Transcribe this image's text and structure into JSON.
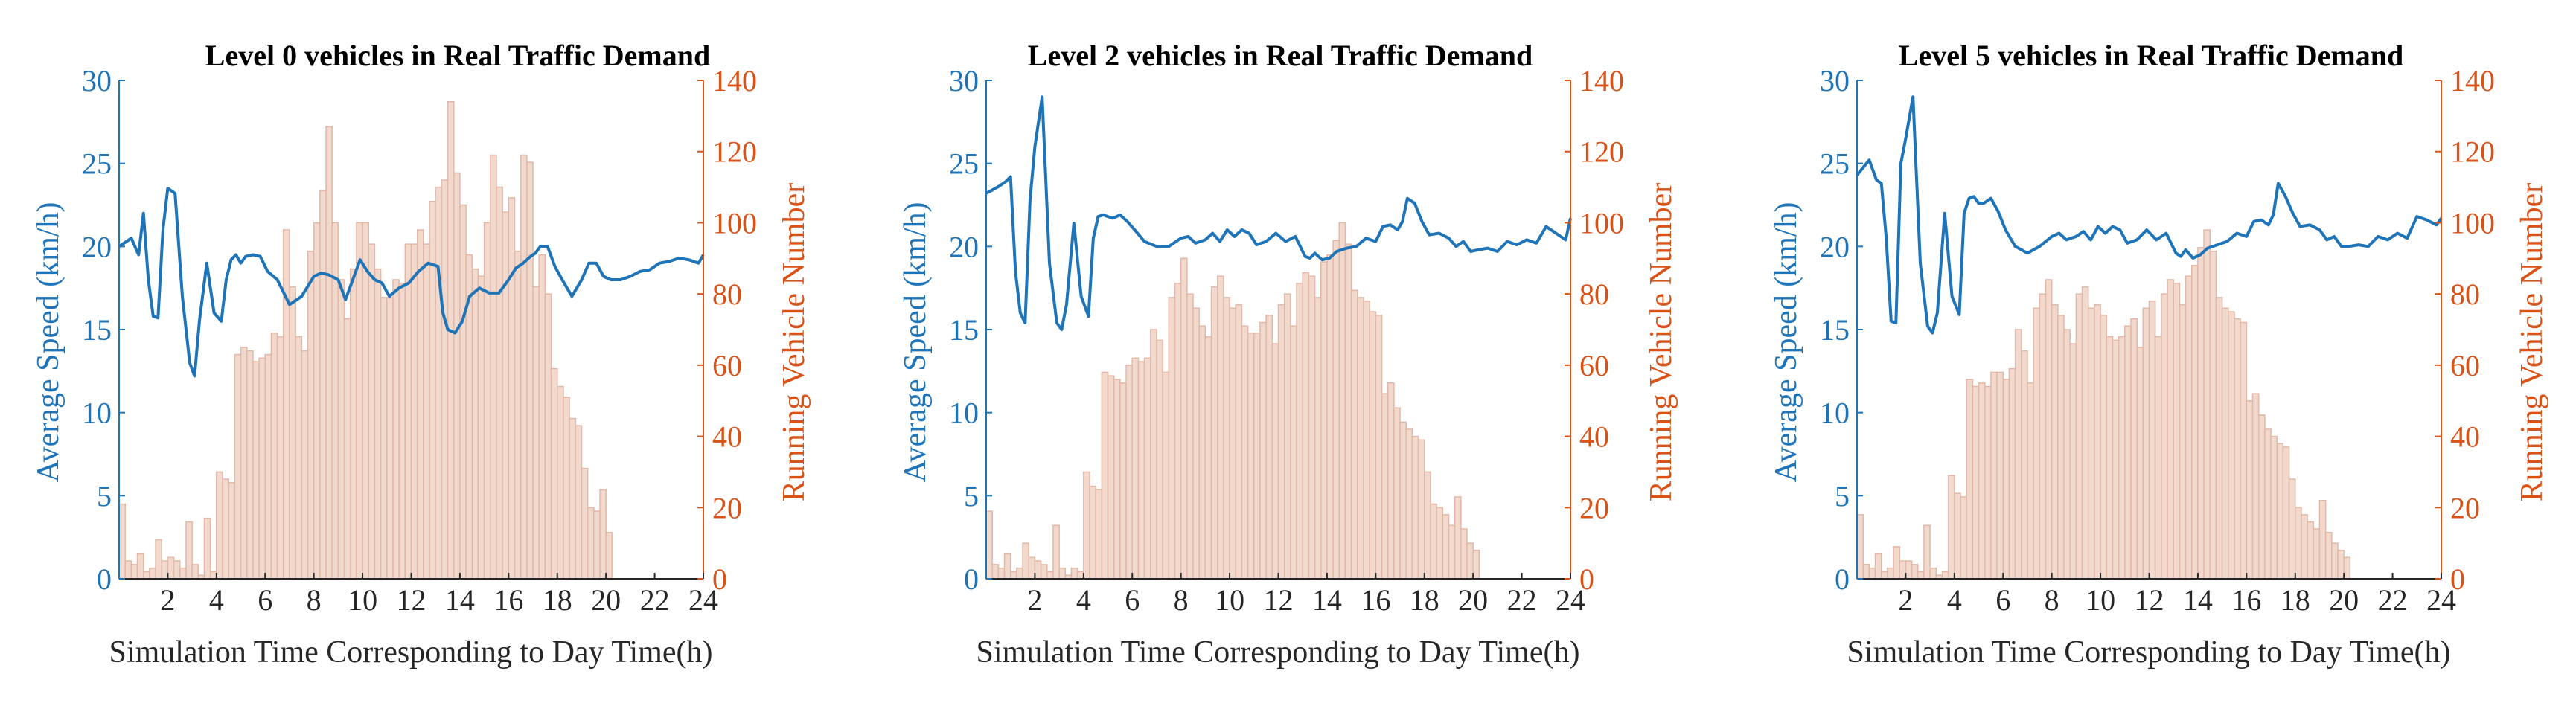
{
  "colors": {
    "speed": "#1f74b8",
    "vehicles": "#d95319",
    "bar_fill": "#f2d9cd",
    "bar_stroke": "#e3b7a5",
    "axis": "#262626"
  },
  "chart_data": [
    {
      "type": "bar+line",
      "title": "Level 0 vehicles in Real Traffic Demand",
      "xlabel": "Simulation Time Corresponding to Day Time(h)",
      "ylabel_left": "Average Speed (km/h)",
      "ylabel_right": "Running Vehicle Number",
      "xlim": [
        0,
        24
      ],
      "ylim_left": [
        0,
        30
      ],
      "ylim_right": [
        0,
        140
      ],
      "x_ticks": [
        2,
        4,
        6,
        8,
        10,
        12,
        14,
        16,
        18,
        20,
        22,
        24
      ],
      "y_left_ticks": [
        0,
        5,
        10,
        15,
        20,
        25,
        30
      ],
      "y_right_ticks": [
        0,
        20,
        40,
        60,
        80,
        100,
        120,
        140
      ],
      "bars": {
        "name": "Running Vehicle Number",
        "bin_width_h": 0.25,
        "values": [
          21,
          5,
          4,
          7,
          2,
          3,
          11,
          5,
          6,
          5,
          3,
          16,
          4,
          1,
          17,
          2,
          30,
          28,
          27,
          63,
          65,
          64,
          61,
          62,
          63,
          69,
          68,
          98,
          82,
          68,
          64,
          92,
          100,
          109,
          127,
          100,
          84,
          73,
          87,
          100,
          100,
          94,
          87,
          79,
          79,
          84,
          83,
          94,
          94,
          98,
          94,
          106,
          110,
          112,
          134,
          114,
          105,
          91,
          87,
          85,
          100,
          119,
          110,
          103,
          107,
          92,
          119,
          117,
          82,
          91,
          80,
          59,
          54,
          51,
          45,
          43,
          31,
          20,
          19,
          25,
          13
        ]
      },
      "line": {
        "name": "Average Speed",
        "x": [
          0,
          0.5,
          0.8,
          1.0,
          1.2,
          1.4,
          1.6,
          1.8,
          2.0,
          2.3,
          2.6,
          2.9,
          3.1,
          3.3,
          3.6,
          3.9,
          4.2,
          4.4,
          4.6,
          4.8,
          5.0,
          5.2,
          5.5,
          5.8,
          6.1,
          6.5,
          7.0,
          7.5,
          8.0,
          8.3,
          8.6,
          9.0,
          9.3,
          9.6,
          9.9,
          10.2,
          10.5,
          10.8,
          11.1,
          11.5,
          11.9,
          12.3,
          12.7,
          13.1,
          13.3,
          13.5,
          13.8,
          14.1,
          14.4,
          14.8,
          15.2,
          15.6,
          16.0,
          16.3,
          16.6,
          16.9,
          17.1,
          17.3,
          17.6,
          17.9,
          18.2,
          18.6,
          19.0,
          19.3,
          19.6,
          19.9,
          20.2,
          20.6,
          21.0,
          21.4,
          21.8,
          22.2,
          22.6,
          23.0,
          23.4,
          23.8,
          24.0
        ],
        "y": [
          20.0,
          20.5,
          19.5,
          22.0,
          18.0,
          15.8,
          15.7,
          21.0,
          23.5,
          23.2,
          17.0,
          13.0,
          12.2,
          15.5,
          19.0,
          16.0,
          15.5,
          18.0,
          19.2,
          19.5,
          19.0,
          19.4,
          19.5,
          19.4,
          18.5,
          18.0,
          16.5,
          17.0,
          18.2,
          18.4,
          18.3,
          18.0,
          16.8,
          18.0,
          19.2,
          18.5,
          18.0,
          17.8,
          17.0,
          17.5,
          17.8,
          18.5,
          19.0,
          18.8,
          16.0,
          15.0,
          14.8,
          15.5,
          17.0,
          17.5,
          17.2,
          17.2,
          18.0,
          18.7,
          19.0,
          19.4,
          19.6,
          20.0,
          20.0,
          18.8,
          18.0,
          17.0,
          18.0,
          19.0,
          19.0,
          18.2,
          18.0,
          18.0,
          18.2,
          18.5,
          18.6,
          19.0,
          19.1,
          19.3,
          19.2,
          19.0,
          19.5
        ]
      }
    },
    {
      "type": "bar+line",
      "title": "Level 2 vehicles in Real Traffic Demand",
      "xlabel": "Simulation Time Corresponding to Day Time(h)",
      "ylabel_left": "Average Speed (km/h)",
      "ylabel_right": "Running Vehicle Number",
      "xlim": [
        0,
        24
      ],
      "ylim_left": [
        0,
        30
      ],
      "ylim_right": [
        0,
        140
      ],
      "x_ticks": [
        2,
        4,
        6,
        8,
        10,
        12,
        14,
        16,
        18,
        20,
        22,
        24
      ],
      "y_left_ticks": [
        0,
        5,
        10,
        15,
        20,
        25,
        30
      ],
      "y_right_ticks": [
        0,
        20,
        40,
        60,
        80,
        100,
        120,
        140
      ],
      "bars": {
        "name": "Running Vehicle Number",
        "bin_width_h": 0.25,
        "values": [
          19,
          4,
          3,
          7,
          2,
          3,
          10,
          6,
          5,
          4,
          2,
          15,
          3,
          1,
          3,
          2,
          30,
          26,
          25,
          58,
          57,
          56,
          55,
          60,
          62,
          61,
          62,
          70,
          67,
          58,
          79,
          83,
          90,
          80,
          76,
          71,
          68,
          82,
          85,
          79,
          76,
          77,
          71,
          69,
          69,
          72,
          74,
          66,
          77,
          80,
          71,
          83,
          86,
          85,
          79,
          89,
          91,
          95,
          100,
          94,
          81,
          79,
          78,
          75,
          74,
          52,
          55,
          48,
          44,
          42,
          40,
          39,
          30,
          21,
          20,
          18,
          15,
          23,
          14,
          10,
          8
        ]
      },
      "line": {
        "name": "Average Speed",
        "x": [
          0,
          0.5,
          0.8,
          1.0,
          1.2,
          1.4,
          1.6,
          1.8,
          2.0,
          2.3,
          2.6,
          2.9,
          3.1,
          3.3,
          3.6,
          3.9,
          4.2,
          4.4,
          4.6,
          4.8,
          5.0,
          5.2,
          5.5,
          5.8,
          6.1,
          6.5,
          7.0,
          7.5,
          8.0,
          8.3,
          8.6,
          9.0,
          9.3,
          9.6,
          9.9,
          10.2,
          10.5,
          10.8,
          11.1,
          11.5,
          11.9,
          12.3,
          12.7,
          13.1,
          13.3,
          13.5,
          13.8,
          14.1,
          14.4,
          14.8,
          15.2,
          15.6,
          16.0,
          16.3,
          16.6,
          16.9,
          17.1,
          17.3,
          17.6,
          17.9,
          18.2,
          18.6,
          19.0,
          19.3,
          19.6,
          19.9,
          20.2,
          20.6,
          21.0,
          21.4,
          21.8,
          22.2,
          22.6,
          23.0,
          23.4,
          23.8,
          24.0
        ],
        "y": [
          23.2,
          23.6,
          23.9,
          24.2,
          18.5,
          16.0,
          15.4,
          22.8,
          26.0,
          29.0,
          19.0,
          15.4,
          15.0,
          16.5,
          21.4,
          17.0,
          15.8,
          20.5,
          21.8,
          21.9,
          21.8,
          21.7,
          21.9,
          21.5,
          21.0,
          20.3,
          20.0,
          20.0,
          20.5,
          20.6,
          20.2,
          20.4,
          20.8,
          20.3,
          21.0,
          20.6,
          21.0,
          20.8,
          20.1,
          20.3,
          20.8,
          20.3,
          20.6,
          19.4,
          19.3,
          19.6,
          19.2,
          19.3,
          19.7,
          19.9,
          20.0,
          20.5,
          20.3,
          21.2,
          21.3,
          21.0,
          21.5,
          22.9,
          22.6,
          21.5,
          20.7,
          20.8,
          20.5,
          20.0,
          20.3,
          19.7,
          19.8,
          19.9,
          19.7,
          20.3,
          20.1,
          20.4,
          20.2,
          21.2,
          20.8,
          20.4,
          21.7
        ]
      }
    },
    {
      "type": "bar+line",
      "title": "Level 5 vehicles in Real Traffic Demand",
      "xlabel": "Simulation Time Corresponding to Day Time(h)",
      "ylabel_left": "Average Speed (km/h)",
      "ylabel_right": "Running Vehicle Number",
      "xlim": [
        0,
        24
      ],
      "ylim_left": [
        0,
        30
      ],
      "ylim_right": [
        0,
        140
      ],
      "x_ticks": [
        2,
        4,
        6,
        8,
        10,
        12,
        14,
        16,
        18,
        20,
        22,
        24
      ],
      "y_left_ticks": [
        0,
        5,
        10,
        15,
        20,
        25,
        30
      ],
      "y_right_ticks": [
        0,
        20,
        40,
        60,
        80,
        100,
        120,
        140
      ],
      "bars": {
        "name": "Running Vehicle Number",
        "bin_width_h": 0.25,
        "values": [
          18,
          4,
          3,
          7,
          2,
          3,
          9,
          5,
          5,
          4,
          2,
          15,
          3,
          1,
          2,
          29,
          24,
          23,
          56,
          54,
          55,
          54,
          58,
          58,
          56,
          59,
          70,
          64,
          55,
          76,
          80,
          84,
          77,
          74,
          70,
          66,
          80,
          82,
          76,
          77,
          74,
          68,
          67,
          68,
          71,
          73,
          65,
          76,
          78,
          68,
          80,
          84,
          83,
          77,
          85,
          88,
          93,
          98,
          92,
          79,
          76,
          75,
          73,
          72,
          50,
          52,
          46,
          42,
          40,
          38,
          37,
          28,
          20,
          18,
          16,
          14,
          22,
          13,
          10,
          8,
          6
        ]
      },
      "line": {
        "name": "Average Speed",
        "x": [
          0,
          0.5,
          0.8,
          1.0,
          1.2,
          1.4,
          1.6,
          1.8,
          2.0,
          2.3,
          2.6,
          2.9,
          3.1,
          3.3,
          3.6,
          3.9,
          4.2,
          4.4,
          4.6,
          4.8,
          5.0,
          5.2,
          5.5,
          5.8,
          6.1,
          6.5,
          7.0,
          7.5,
          8.0,
          8.3,
          8.6,
          9.0,
          9.3,
          9.6,
          9.9,
          10.2,
          10.5,
          10.8,
          11.1,
          11.5,
          11.9,
          12.3,
          12.7,
          13.1,
          13.3,
          13.5,
          13.8,
          14.1,
          14.4,
          14.8,
          15.2,
          15.6,
          16.0,
          16.3,
          16.6,
          16.9,
          17.1,
          17.3,
          17.6,
          17.9,
          18.2,
          18.6,
          19.0,
          19.3,
          19.6,
          19.9,
          20.2,
          20.6,
          21.0,
          21.4,
          21.8,
          22.2,
          22.6,
          23.0,
          23.4,
          23.8,
          24.0
        ],
        "y": [
          24.3,
          25.2,
          24.0,
          23.8,
          20.5,
          15.5,
          15.4,
          25.0,
          26.5,
          29.0,
          19.0,
          15.2,
          14.8,
          16.0,
          22.0,
          17.0,
          15.9,
          22.0,
          22.9,
          23.0,
          22.6,
          22.6,
          22.9,
          22.1,
          21.0,
          20.0,
          19.6,
          20.0,
          20.6,
          20.8,
          20.4,
          20.6,
          20.9,
          20.4,
          21.2,
          20.8,
          21.2,
          21.0,
          20.2,
          20.4,
          21.0,
          20.4,
          20.8,
          19.6,
          19.4,
          19.8,
          19.3,
          19.5,
          19.9,
          20.1,
          20.3,
          20.8,
          20.6,
          21.5,
          21.6,
          21.3,
          21.9,
          23.8,
          23.0,
          22.0,
          21.2,
          21.3,
          21.0,
          20.4,
          20.6,
          20.0,
          20.0,
          20.1,
          20.0,
          20.6,
          20.4,
          20.8,
          20.5,
          21.8,
          21.6,
          21.3,
          21.7
        ]
      }
    }
  ]
}
